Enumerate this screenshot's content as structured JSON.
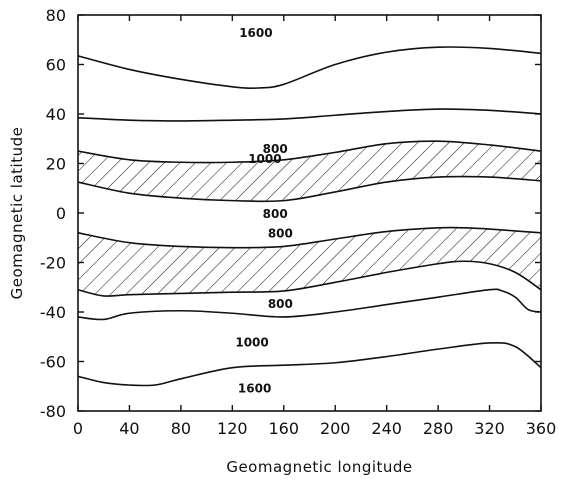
{
  "chart_data": {
    "type": "line",
    "xlabel": "Geomagnetic longitude",
    "ylabel": "Geomagnetic latitude",
    "xlim": [
      0,
      360
    ],
    "ylim": [
      -80,
      80
    ],
    "xticks": [
      "0",
      "40",
      "80",
      "120",
      "160",
      "200",
      "240",
      "280",
      "320",
      "360"
    ],
    "yticks": [
      "80",
      "60",
      "40",
      "20",
      "0",
      "-20",
      "-40",
      "-60",
      "-80"
    ],
    "grid": false,
    "series": [
      {
        "label": "1600",
        "x": [
          0,
          40,
          80,
          120,
          140,
          160,
          200,
          240,
          280,
          320,
          360
        ],
        "y": [
          63.5,
          58,
          54,
          51,
          50.5,
          52,
          60,
          65,
          67,
          66.5,
          64.5
        ]
      },
      {
        "label": "1000",
        "x": [
          0,
          40,
          80,
          120,
          160,
          200,
          240,
          280,
          320,
          360
        ],
        "y": [
          38.5,
          37.5,
          37.2,
          37.5,
          38,
          39.5,
          41,
          42,
          41.5,
          40
        ]
      },
      {
        "label": "800",
        "x": [
          0,
          40,
          80,
          120,
          160,
          200,
          240,
          280,
          320,
          360
        ],
        "y": [
          25,
          21.5,
          20.5,
          20.5,
          21.5,
          24.5,
          28,
          29,
          27.5,
          25
        ]
      },
      {
        "label": "800",
        "x": [
          0,
          40,
          80,
          120,
          160,
          200,
          240,
          280,
          320,
          360
        ],
        "y": [
          12.5,
          8,
          6,
          5,
          5,
          8.5,
          12.5,
          14.5,
          14.5,
          13
        ]
      },
      {
        "label": "800",
        "x": [
          0,
          40,
          80,
          120,
          160,
          200,
          240,
          280,
          300,
          320,
          360
        ],
        "y": [
          -8,
          -12,
          -13.5,
          -14,
          -13.5,
          -10.5,
          -7.5,
          -6,
          -6,
          -6.5,
          -8
        ]
      },
      {
        "label": "800",
        "x": [
          0,
          20,
          40,
          80,
          120,
          160,
          200,
          240,
          280,
          300,
          320,
          340,
          360
        ],
        "y": [
          -31,
          -33.5,
          -33,
          -32.5,
          -32,
          -31.5,
          -28,
          -24,
          -20.5,
          -19.5,
          -20.5,
          -24,
          -31
        ]
      },
      {
        "label": "1000",
        "x": [
          0,
          20,
          40,
          80,
          120,
          160,
          200,
          240,
          280,
          320,
          330,
          340,
          350,
          360
        ],
        "y": [
          -42,
          -43,
          -40.5,
          -39.5,
          -40.5,
          -42,
          -40,
          -37,
          -34,
          -31,
          -31.5,
          -34,
          -39,
          -40
        ]
      },
      {
        "label": "1600",
        "x": [
          0,
          20,
          40,
          60,
          80,
          120,
          160,
          200,
          240,
          280,
          320,
          340,
          360
        ],
        "y": [
          -66,
          -68.5,
          -69.5,
          -69.5,
          -67,
          -62.5,
          -61.5,
          -60.5,
          -58,
          -55,
          -52.5,
          -54,
          -62.5
        ]
      }
    ],
    "shaded_bands": [
      {
        "between_series": [
          2,
          3
        ],
        "fill": "hatched"
      },
      {
        "between_series": [
          4,
          5
        ],
        "fill": "hatched"
      }
    ],
    "colors": {
      "line": "#111111",
      "background": "#ffffff"
    }
  }
}
